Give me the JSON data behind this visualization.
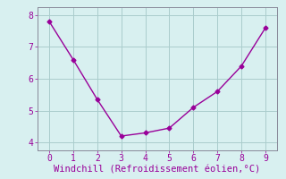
{
  "x": [
    0,
    1,
    2,
    3,
    4,
    5,
    6,
    7,
    8,
    9
  ],
  "y": [
    7.8,
    6.6,
    5.35,
    4.2,
    4.3,
    4.45,
    5.1,
    5.6,
    6.4,
    7.6
  ],
  "line_color": "#990099",
  "marker": "D",
  "marker_size": 2.5,
  "linewidth": 1.0,
  "xlabel": "Windchill (Refroidissement éolien,°C)",
  "xlabel_fontsize": 7.5,
  "xlim": [
    -0.5,
    9.5
  ],
  "ylim": [
    3.75,
    8.25
  ],
  "xticks": [
    0,
    1,
    2,
    3,
    4,
    5,
    6,
    7,
    8,
    9
  ],
  "yticks": [
    4,
    5,
    6,
    7,
    8
  ],
  "grid_color": "#aacccc",
  "background_color": "#d8f0f0",
  "tick_fontsize": 7,
  "spine_color": "#888899"
}
